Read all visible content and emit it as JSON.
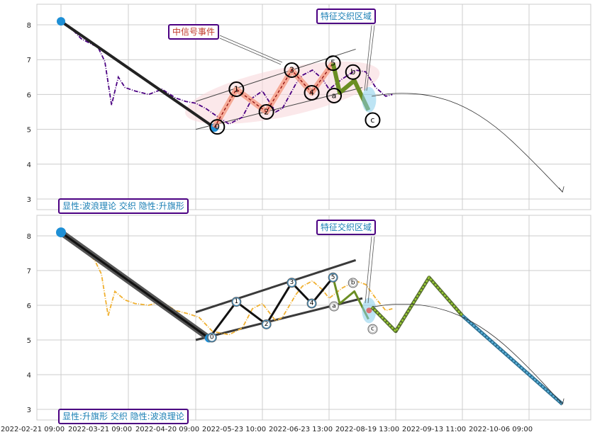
{
  "colors": {
    "grid": "#cccccc",
    "price_top": "#4b0082",
    "price_bottom": "#f0b030",
    "trend_line": "#222222",
    "node_blue": "#1e8fd5",
    "wave_highlight": "#f4a08a",
    "wave_ellipse": "#f8d8dc",
    "correction_green": "#6b8e23",
    "forecast_blue": "#5bb0d8",
    "forecast_green": "#9acd32",
    "callout_border": "#4b0082"
  },
  "x_axis": {
    "tick_labels": [
      "2022-02-21 09:00",
      "2022-03-21 09:00",
      "2022-04-20 09:00",
      "2022-05-23 10:00",
      "2022-06-23 13:00",
      "2022-08-19 13:00",
      "2022-09-13 11:00",
      "2022-10-06 09:00"
    ]
  },
  "panels": [
    {
      "annotation_bottom": "显性:波浪理论 交织 隐性:升旗形",
      "callout_feature": "特征交织区域",
      "callout_signal": "中信号事件",
      "wave_labels": [
        "0",
        "1",
        "2",
        "3",
        "4",
        "5",
        "a",
        "b",
        "c"
      ]
    },
    {
      "annotation_bottom": "显性:升旗形 交织 隐性:波浪理论",
      "callout_feature": "特征交织区域",
      "wave_labels": [
        "0",
        "1",
        "2",
        "3",
        "4",
        "5",
        "a",
        "b",
        "c"
      ]
    }
  ],
  "chart_data": [
    {
      "type": "line",
      "ylim": [
        2.7,
        8.6
      ],
      "yticks": [
        3,
        4,
        5,
        6,
        7,
        8
      ],
      "xlim_index": [
        -1.7,
        7.8
      ],
      "series": [
        {
          "kind": "price",
          "points": [
            [
              0.0,
              8.1
            ],
            [
              0.1,
              7.95
            ],
            [
              0.2,
              7.8
            ],
            [
              0.3,
              7.6
            ],
            [
              0.4,
              7.5
            ],
            [
              0.55,
              7.35
            ],
            [
              0.65,
              6.95
            ],
            [
              0.75,
              5.7
            ],
            [
              0.85,
              6.5
            ],
            [
              0.95,
              6.2
            ],
            [
              1.1,
              6.1
            ],
            [
              1.3,
              6.0
            ],
            [
              1.5,
              6.15
            ],
            [
              1.7,
              5.9
            ],
            [
              1.85,
              5.8
            ],
            [
              2.0,
              5.75
            ],
            [
              2.15,
              5.6
            ],
            [
              2.3,
              5.4
            ],
            [
              2.5,
              5.15
            ],
            [
              2.7,
              5.35
            ],
            [
              2.85,
              5.9
            ],
            [
              3.0,
              6.1
            ],
            [
              3.2,
              5.5
            ],
            [
              3.3,
              5.6
            ],
            [
              3.5,
              6.3
            ],
            [
              3.6,
              6.55
            ],
            [
              3.75,
              6.7
            ],
            [
              3.9,
              6.45
            ],
            [
              4.0,
              6.15
            ],
            [
              4.2,
              6.45
            ],
            [
              4.4,
              6.7
            ],
            [
              4.55,
              6.65
            ],
            [
              4.7,
              6.2
            ],
            [
              4.85,
              5.95
            ],
            [
              4.95,
              6.0
            ]
          ]
        },
        {
          "kind": "trend",
          "points": [
            [
              0.0,
              8.1
            ],
            [
              2.28,
              5.05
            ]
          ]
        },
        {
          "kind": "wave",
          "labels": [
            "0",
            "1",
            "2",
            "3",
            "4",
            "5"
          ],
          "points": [
            [
              2.28,
              5.05
            ],
            [
              2.61,
              6.15
            ],
            [
              3.06,
              5.5
            ],
            [
              3.44,
              6.7
            ],
            [
              3.74,
              6.05
            ],
            [
              4.06,
              6.9
            ]
          ]
        },
        {
          "kind": "correction",
          "labels": [
            "a",
            "b",
            "c"
          ],
          "points": [
            [
              4.06,
              6.9
            ],
            [
              4.16,
              6.05
            ],
            [
              4.38,
              6.4
            ],
            [
              4.59,
              5.55
            ]
          ]
        },
        {
          "kind": "channel",
          "lines": [
            [
              [
                2.0,
                5.8
              ],
              [
                4.4,
                7.3
              ]
            ],
            [
              [
                2.0,
                5.0
              ],
              [
                4.5,
                6.2
              ]
            ]
          ]
        },
        {
          "kind": "forecast_arc",
          "points": [
            [
              4.64,
              5.95
            ],
            [
              5.0,
              6.05
            ],
            [
              5.5,
              6.0
            ],
            [
              6.0,
              5.7
            ],
            [
              6.5,
              5.1
            ],
            [
              7.0,
              4.2
            ],
            [
              7.5,
              3.2
            ]
          ]
        }
      ]
    },
    {
      "type": "line",
      "ylim": [
        2.7,
        8.6
      ],
      "yticks": [
        3,
        4,
        5,
        6,
        7,
        8
      ],
      "xlim_index": [
        -1.7,
        7.8
      ],
      "series": [
        {
          "kind": "price",
          "points": [
            [
              0.0,
              8.1
            ],
            [
              0.1,
              7.9
            ],
            [
              0.2,
              7.75
            ],
            [
              0.35,
              7.55
            ],
            [
              0.5,
              7.3
            ],
            [
              0.6,
              6.9
            ],
            [
              0.7,
              5.7
            ],
            [
              0.8,
              6.4
            ],
            [
              0.95,
              6.15
            ],
            [
              1.1,
              6.05
            ],
            [
              1.3,
              6.0
            ],
            [
              1.5,
              6.1
            ],
            [
              1.7,
              5.85
            ],
            [
              1.9,
              5.75
            ],
            [
              2.05,
              5.65
            ],
            [
              2.25,
              5.25
            ],
            [
              2.5,
              5.15
            ],
            [
              2.7,
              5.35
            ],
            [
              2.85,
              5.9
            ],
            [
              3.0,
              6.05
            ],
            [
              3.2,
              5.55
            ],
            [
              3.3,
              5.65
            ],
            [
              3.5,
              6.3
            ],
            [
              3.6,
              6.55
            ],
            [
              3.75,
              6.7
            ],
            [
              3.9,
              6.45
            ],
            [
              4.0,
              6.2
            ],
            [
              4.2,
              6.5
            ],
            [
              4.4,
              6.7
            ],
            [
              4.55,
              6.6
            ],
            [
              4.7,
              6.2
            ],
            [
              4.85,
              5.85
            ],
            [
              4.95,
              5.9
            ]
          ]
        },
        {
          "kind": "trend",
          "points": [
            [
              0.0,
              8.1
            ],
            [
              2.2,
              5.05
            ]
          ]
        },
        {
          "kind": "wave",
          "labels": [
            "0",
            "1",
            "2",
            "3",
            "4",
            "5"
          ],
          "points": [
            [
              2.2,
              5.05
            ],
            [
              2.61,
              6.1
            ],
            [
              3.06,
              5.45
            ],
            [
              3.44,
              6.65
            ],
            [
              3.74,
              6.05
            ],
            [
              4.06,
              6.8
            ]
          ]
        },
        {
          "kind": "correction",
          "labels": [
            "a",
            "b",
            "c"
          ],
          "points": [
            [
              4.06,
              6.8
            ],
            [
              4.16,
              6.05
            ],
            [
              4.38,
              6.4
            ],
            [
              4.59,
              5.6
            ]
          ]
        },
        {
          "kind": "channel",
          "lines": [
            [
              [
                2.0,
                5.8
              ],
              [
                4.4,
                7.3
              ]
            ],
            [
              [
                2.0,
                5.0
              ],
              [
                4.5,
                6.2
              ]
            ]
          ]
        },
        {
          "kind": "forecast_zigzag",
          "points": [
            [
              4.64,
              5.95
            ],
            [
              5.0,
              5.25
            ],
            [
              5.5,
              6.8
            ],
            [
              6.0,
              5.7
            ],
            [
              7.5,
              3.15
            ]
          ]
        },
        {
          "kind": "forecast_arc",
          "points": [
            [
              4.64,
              5.95
            ],
            [
              5.0,
              6.05
            ],
            [
              5.5,
              6.0
            ],
            [
              6.0,
              5.7
            ],
            [
              6.5,
              5.1
            ],
            [
              7.0,
              4.2
            ],
            [
              7.5,
              3.15
            ]
          ]
        }
      ]
    }
  ]
}
